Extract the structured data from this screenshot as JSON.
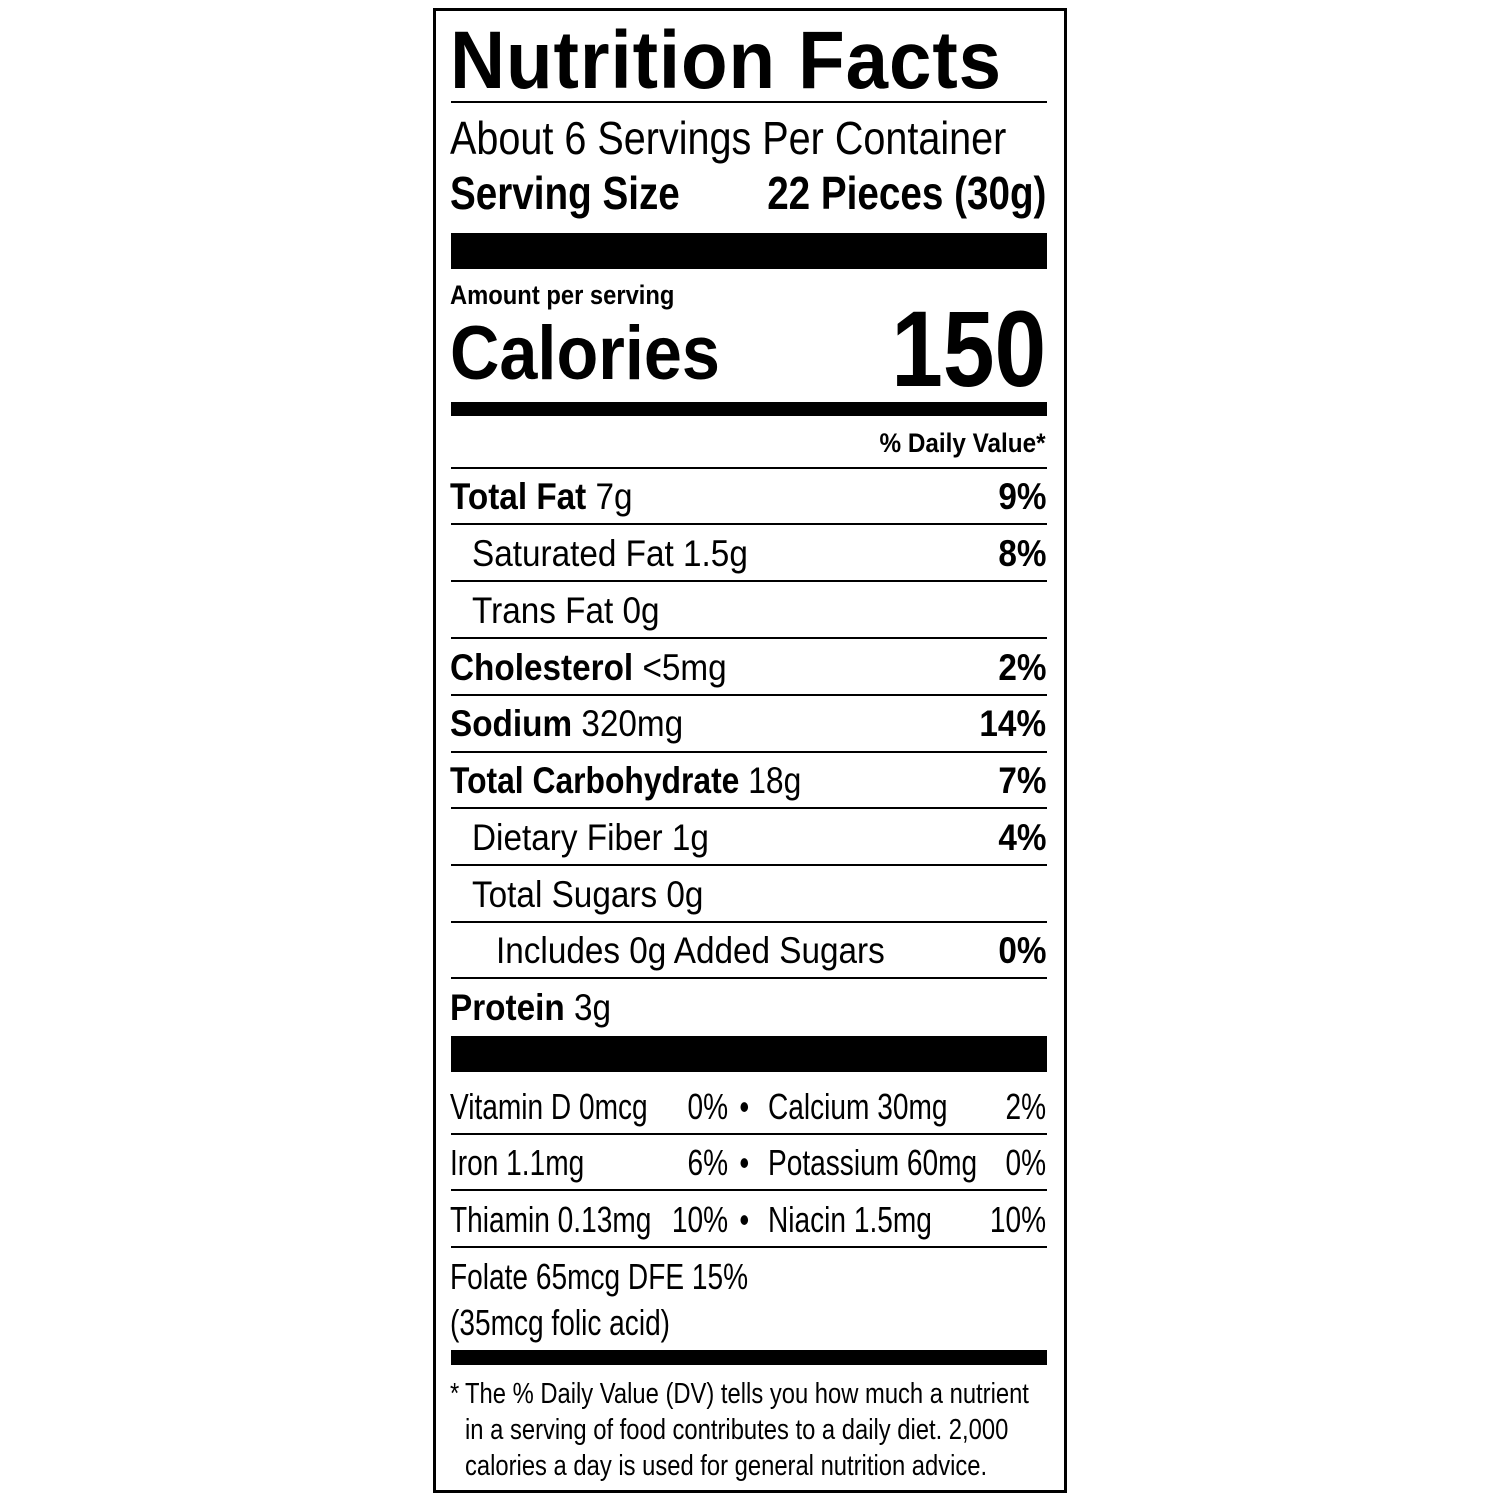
{
  "title": "Nutrition Facts",
  "servings_per_container": "About 6 Servings Per Container",
  "serving_size_label": "Serving Size",
  "serving_size_value": "22 Pieces (30g)",
  "amount_per_serving": "Amount per serving",
  "calories_label": "Calories",
  "calories_value": "150",
  "daily_value_header": "% Daily Value*",
  "nutrients": [
    {
      "name": "Total Fat",
      "amount": "7g",
      "dv": "9%"
    },
    {
      "name": "Saturated Fat",
      "amount": "1.5g",
      "dv": "8%"
    },
    {
      "name": "Trans Fat",
      "amount": "0g",
      "dv": ""
    },
    {
      "name": "Cholesterol",
      "amount": "<5mg",
      "dv": "2%"
    },
    {
      "name": "Sodium",
      "amount": "320mg",
      "dv": "14%"
    },
    {
      "name": "Total Carbohydrate",
      "amount": "18g",
      "dv": "7%"
    },
    {
      "name": "Dietary Fiber",
      "amount": "1g",
      "dv": "4%"
    },
    {
      "name": "Total Sugars",
      "amount": "0g",
      "dv": ""
    },
    {
      "name": "Includes 0g Added Sugars",
      "amount": "",
      "dv": "0%"
    },
    {
      "name": "Protein",
      "amount": "3g",
      "dv": ""
    }
  ],
  "vitamins": [
    {
      "left_name": "Vitamin D 0mcg",
      "left_dv": "0%",
      "right_name": "Calcium 30mg",
      "right_dv": "2%"
    },
    {
      "left_name": "Iron 1.1mg",
      "left_dv": "6%",
      "right_name": "Potassium 60mg",
      "right_dv": "0%"
    },
    {
      "left_name": "Thiamin 0.13mg",
      "left_dv": "10%",
      "right_name": "Niacin 1.5mg",
      "right_dv": "10%"
    }
  ],
  "bullet": "•",
  "folate_line1": "Folate 65mcg DFE 15%",
  "folate_line2": "(35mcg folic acid)",
  "footnote_star": "*",
  "footnote_lines": [
    "The % Daily Value (DV) tells you how much a nutrient",
    "in a serving of food contributes to a daily diet. 2,000",
    "calories a day is used for general nutrition advice."
  ]
}
